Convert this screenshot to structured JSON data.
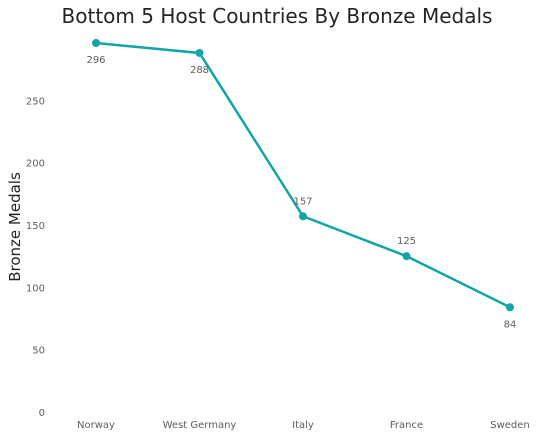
{
  "chart_data": {
    "type": "line",
    "title": "Bottom 5 Host Countries By Bronze Medals",
    "xlabel": "",
    "ylabel": "Bronze Medals",
    "categories": [
      "Norway",
      "West Germany",
      "Italy",
      "France",
      "Sweden"
    ],
    "series": [
      {
        "values": [
          296,
          288,
          157,
          125,
          84
        ]
      }
    ],
    "yticks": [
      0,
      50,
      100,
      150,
      200,
      250
    ],
    "ylim": [
      0,
      300
    ],
    "grid": false,
    "legend": "none",
    "line_color": "#12A5A5"
  }
}
